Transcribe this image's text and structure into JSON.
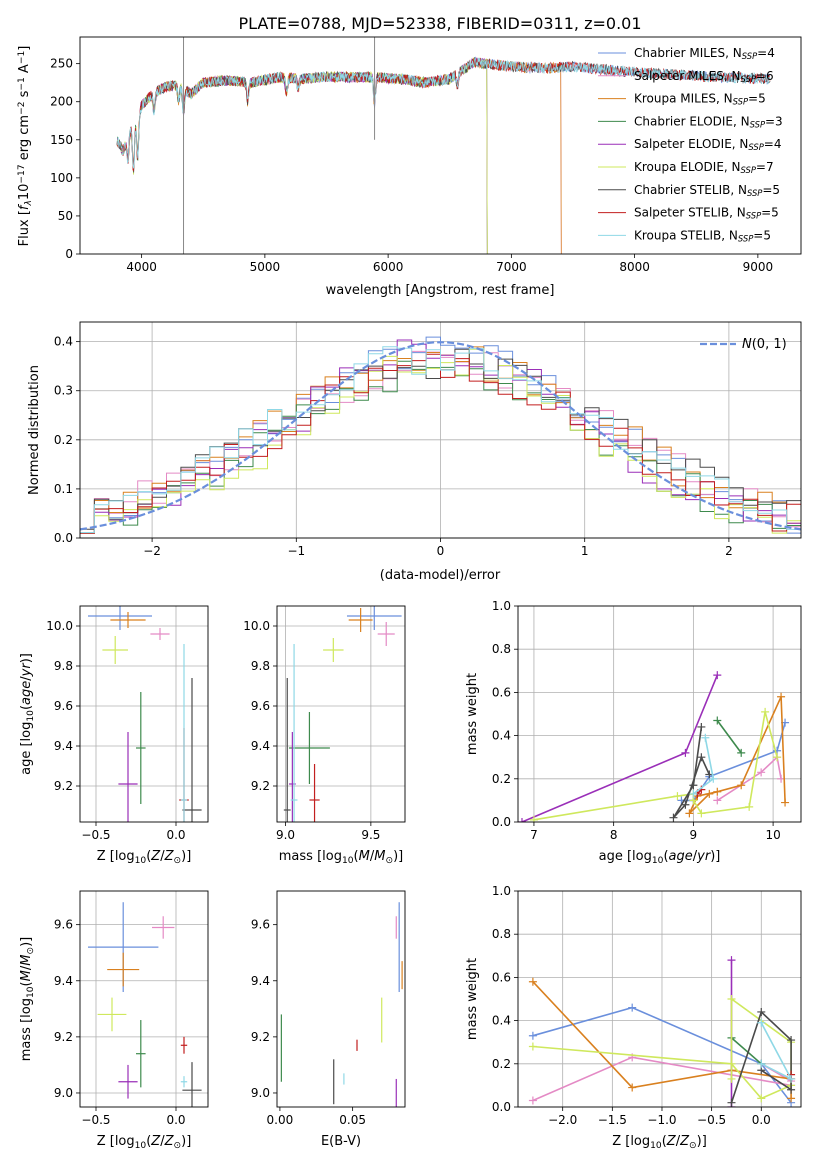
{
  "figure": {
    "title": "PLATE=0788, MJD=52338, FIBERID=0311, z=0.01"
  },
  "series_colors": [
    "#6a8fdc",
    "#e48ac5",
    "#d9801f",
    "#3e8a4d",
    "#9a2fb8",
    "#cfe85d",
    "#4a4a4a",
    "#c21f1f",
    "#8fd8e6"
  ],
  "chart_data": [
    {
      "id": "spectrum",
      "type": "line",
      "xlabel": "wavelength [Angstrom, rest frame]",
      "ylabel": "Flux [f_λ 10^{-17} erg cm^{-2} s^{-1} A^{-1}]",
      "xlim": [
        3500,
        9350
      ],
      "ylim": [
        0,
        285
      ],
      "xticks": [
        4000,
        5000,
        6000,
        7000,
        8000,
        9000
      ],
      "yticks": [
        0,
        50,
        100,
        150,
        200,
        250
      ],
      "grid": false,
      "legend_position": "top-right",
      "spectrum_knots": {
        "x": [
          3800,
          3850,
          3900,
          3950,
          4000,
          4100,
          4200,
          4300,
          4400,
          4500,
          4700,
          4900,
          5100,
          5300,
          5500,
          5700,
          5900,
          6100,
          6300,
          6500,
          6700,
          6900,
          7100,
          7300,
          7500,
          7700,
          7900,
          8100,
          8300,
          8500,
          8700,
          8900,
          9100
        ],
        "y": [
          150,
          135,
          160,
          175,
          195,
          212,
          220,
          222,
          210,
          225,
          228,
          225,
          232,
          230,
          233,
          232,
          232,
          230,
          225,
          230,
          252,
          248,
          245,
          244,
          246,
          243,
          240,
          238,
          236,
          234,
          232,
          231,
          230
        ]
      },
      "series": [
        {
          "name": "Chabrier MILES, N_SSP=4",
          "xmax": 9100
        },
        {
          "name": "Salpeter MILES, N_SSP=6",
          "xmax": 7400
        },
        {
          "name": "Kroupa MILES, N_SSP=5",
          "xmax": 7400
        },
        {
          "name": "Chabrier ELODIE, N_SSP=3",
          "xmax": 6800
        },
        {
          "name": "Salpeter ELODIE, N_SSP=4",
          "xmax": 6800
        },
        {
          "name": "Kroupa ELODIE, N_SSP=7",
          "xmax": 6800
        },
        {
          "name": "Chabrier STELIB, N_SSP=5",
          "xmax": 9100
        },
        {
          "name": "Salpeter STELIB, N_SSP=5",
          "xmax": 9100
        },
        {
          "name": "Kroupa STELIB, N_SSP=5",
          "xmax": 9100
        }
      ]
    },
    {
      "id": "residuals",
      "type": "line",
      "xlabel": "(data-model)/error",
      "ylabel": "Normed distribution",
      "xlim": [
        -2.5,
        2.5
      ],
      "ylim": [
        0,
        0.44
      ],
      "xticks": [
        -2,
        -1,
        0,
        1,
        2
      ],
      "yticks": [
        0.0,
        0.1,
        0.2,
        0.3,
        0.4
      ],
      "grid": true,
      "legend_position": "top-right",
      "reference_curve": {
        "name": "N(0,1)",
        "mean": 0,
        "sigma": 1
      },
      "bins": 50,
      "amplitude_per_series": [
        0.38,
        0.36,
        0.37,
        0.35,
        0.38,
        0.37,
        0.36,
        0.35,
        0.37
      ],
      "width_per_series": [
        1.15,
        1.2,
        1.18,
        1.1,
        1.05,
        1.02,
        1.25,
        1.15,
        1.2
      ]
    },
    {
      "id": "age-vs-metallicity",
      "type": "scatter",
      "xlabel": "Z [log10(Z/Z⊙)]",
      "ylabel": "age [log10(age/yr)]",
      "xlim": [
        -0.6,
        0.2
      ],
      "ylim": [
        9.02,
        10.1
      ],
      "xticks": [
        -0.5,
        0.0
      ],
      "yticks": [
        9.2,
        9.4,
        9.6,
        9.8,
        10.0
      ],
      "grid": true,
      "points": [
        {
          "x": -0.35,
          "y": 10.05,
          "xerr": 0.2,
          "yerr": 0.07
        },
        {
          "x": -0.1,
          "y": 9.96,
          "xerr": 0.06,
          "yerr": 0.03
        },
        {
          "x": -0.3,
          "y": 10.03,
          "xerr": 0.11,
          "yerr": 0.04
        },
        {
          "x": -0.22,
          "y": 9.39,
          "xerr": 0.03,
          "yerr": 0.28
        },
        {
          "x": -0.3,
          "y": 9.21,
          "xerr": 0.06,
          "yerr": 0.26
        },
        {
          "x": -0.38,
          "y": 9.88,
          "xerr": 0.08,
          "yerr": 0.07
        },
        {
          "x": 0.1,
          "y": 9.08,
          "xerr": 0.06,
          "yerr": 0.66
        },
        {
          "x": 0.05,
          "y": 9.13,
          "xerr": 0.03,
          "yerr": 0.36
        },
        {
          "x": 0.05,
          "y": 9.13,
          "xerr": 0.02,
          "yerr": 0.78
        }
      ]
    },
    {
      "id": "age-vs-mass",
      "type": "scatter",
      "xlabel": "mass [log10(M/M⊙)]",
      "ylabel": "",
      "xlim": [
        8.95,
        9.7
      ],
      "ylim": [
        9.02,
        10.1
      ],
      "xticks": [
        9.0,
        9.5
      ],
      "yticks": [
        9.2,
        9.4,
        9.6,
        9.8,
        10.0
      ],
      "grid": true,
      "points": [
        {
          "x": 9.52,
          "y": 10.05,
          "xerr": 0.16,
          "yerr": 0.07
        },
        {
          "x": 9.59,
          "y": 9.96,
          "xerr": 0.05,
          "yerr": 0.06
        },
        {
          "x": 9.44,
          "y": 10.03,
          "xerr": 0.07,
          "yerr": 0.06
        },
        {
          "x": 9.14,
          "y": 9.39,
          "xerr": 0.12,
          "yerr": 0.18
        },
        {
          "x": 9.04,
          "y": 9.21,
          "xerr": 0.02,
          "yerr": 0.26
        },
        {
          "x": 9.28,
          "y": 9.88,
          "xerr": 0.06,
          "yerr": 0.06
        },
        {
          "x": 9.01,
          "y": 9.08,
          "xerr": 0.02,
          "yerr": 0.66
        },
        {
          "x": 9.17,
          "y": 9.13,
          "xerr": 0.03,
          "yerr": 0.18
        },
        {
          "x": 9.05,
          "y": 9.13,
          "xerr": 0.02,
          "yerr": 0.78
        }
      ]
    },
    {
      "id": "weight-vs-age",
      "type": "line",
      "xlabel": "age [log10(age/yr)]",
      "ylabel": "mass weight",
      "xlim": [
        6.8,
        10.35
      ],
      "ylim": [
        0,
        1
      ],
      "xticks": [
        7,
        8,
        9,
        10
      ],
      "yticks": [
        0.0,
        0.2,
        0.4,
        0.6,
        0.8,
        1.0
      ],
      "grid": true,
      "series": [
        {
          "x": [
            10.15,
            10.05,
            9.2,
            9.0,
            8.85
          ],
          "y": [
            0.46,
            0.33,
            0.21,
            0.1,
            0.1
          ]
        },
        {
          "x": [
            9.3,
            9.85,
            10.05,
            10.1
          ],
          "y": [
            0.1,
            0.23,
            0.3,
            0.2
          ]
        },
        {
          "x": [
            10.15,
            10.1,
            9.6,
            9.2,
            8.95,
            9.05,
            9.3
          ],
          "y": [
            0.09,
            0.58,
            0.17,
            0.13,
            0.04,
            0.12,
            0.14
          ]
        },
        {
          "x": [
            9.3,
            9.6
          ],
          "y": [
            0.47,
            0.32
          ]
        },
        {
          "x": [
            9.3,
            8.9,
            6.85
          ],
          "y": [
            0.68,
            0.32,
            0.0
          ]
        },
        {
          "x": [
            7.0,
            8.8,
            9.0,
            9.0,
            9.1,
            9.7,
            9.9,
            10.05
          ],
          "y": [
            0.01,
            0.12,
            0.13,
            0.1,
            0.04,
            0.07,
            0.51,
            0.3
          ]
        },
        {
          "x": [
            9.1,
            9.0,
            8.75,
            8.9,
            9.1,
            9.2
          ],
          "y": [
            0.44,
            0.17,
            0.02,
            0.08,
            0.3,
            0.22
          ]
        },
        {
          "x": [
            9.05,
            9.1
          ],
          "y": [
            0.13,
            0.15
          ]
        },
        {
          "x": [
            9.15,
            9.25,
            9.0
          ],
          "y": [
            0.39,
            0.2,
            0.13
          ]
        }
      ]
    },
    {
      "id": "mass-vs-metallicity",
      "type": "scatter",
      "xlabel": "Z [log10(Z/Z⊙)]",
      "ylabel": "mass [log10(M/M⊙)]",
      "xlim": [
        -0.6,
        0.2
      ],
      "ylim": [
        8.95,
        9.72
      ],
      "xticks": [
        -0.5,
        0.0
      ],
      "yticks": [
        9.0,
        9.2,
        9.4,
        9.6
      ],
      "grid": true,
      "points": [
        {
          "x": -0.33,
          "y": 9.52,
          "xerr": 0.22,
          "yerr": 0.16
        },
        {
          "x": -0.08,
          "y": 9.59,
          "xerr": 0.07,
          "yerr": 0.04
        },
        {
          "x": -0.33,
          "y": 9.44,
          "xerr": 0.1,
          "yerr": 0.06
        },
        {
          "x": -0.22,
          "y": 9.14,
          "xerr": 0.03,
          "yerr": 0.12
        },
        {
          "x": -0.3,
          "y": 9.04,
          "xerr": 0.06,
          "yerr": 0.06
        },
        {
          "x": -0.4,
          "y": 9.28,
          "xerr": 0.09,
          "yerr": 0.06
        },
        {
          "x": 0.1,
          "y": 9.01,
          "xerr": 0.06,
          "yerr": 0.1
        },
        {
          "x": 0.05,
          "y": 9.17,
          "xerr": 0.02,
          "yerr": 0.03
        },
        {
          "x": 0.05,
          "y": 9.04,
          "xerr": 0.02,
          "yerr": 0.02
        }
      ]
    },
    {
      "id": "mass-vs-ebv",
      "type": "scatter",
      "xlabel": "E(B-V)",
      "ylabel": "",
      "xlim": [
        -0.002,
        0.086
      ],
      "ylim": [
        8.95,
        9.72
      ],
      "xticks": [
        0.0,
        0.05
      ],
      "xtick_labels": [
        "0.00",
        "0.05"
      ],
      "yticks": [
        9.0,
        9.2,
        9.4,
        9.6
      ],
      "grid": false,
      "points": [
        {
          "x": 0.082,
          "y": 9.52,
          "xerr": 0,
          "yerr": 0.16
        },
        {
          "x": 0.08,
          "y": 9.59,
          "xerr": 0,
          "yerr": 0.04
        },
        {
          "x": 0.084,
          "y": 9.42,
          "xerr": 0,
          "yerr": 0.05
        },
        {
          "x": 0.001,
          "y": 9.16,
          "xerr": 0,
          "yerr": 0.12
        },
        {
          "x": 0.08,
          "y": 9.0,
          "xerr": 0,
          "yerr": 0.05
        },
        {
          "x": 0.07,
          "y": 9.26,
          "xerr": 0,
          "yerr": 0.08
        },
        {
          "x": 0.037,
          "y": 9.04,
          "xerr": 0,
          "yerr": 0.08
        },
        {
          "x": 0.053,
          "y": 9.17,
          "xerr": 0,
          "yerr": 0.02
        },
        {
          "x": 0.044,
          "y": 9.05,
          "xerr": 0,
          "yerr": 0.02
        }
      ]
    },
    {
      "id": "weight-vs-metallicity",
      "type": "line",
      "xlabel": "Z [log10(Z/Z⊙)]",
      "ylabel": "mass weight",
      "xlim": [
        -2.45,
        0.4
      ],
      "ylim": [
        0,
        1
      ],
      "xticks": [
        -2.0,
        -1.5,
        -1.0,
        -0.5,
        0.0
      ],
      "yticks": [
        0.0,
        0.2,
        0.4,
        0.6,
        0.8,
        1.0
      ],
      "grid": true,
      "series": [
        {
          "x": [
            -2.3,
            -1.3,
            0.0,
            0.3
          ],
          "y": [
            0.33,
            0.46,
            0.2,
            0.02
          ]
        },
        {
          "x": [
            -2.3,
            -1.3,
            0.3,
            0.3,
            0.0
          ],
          "y": [
            0.03,
            0.23,
            0.1,
            0.12,
            0.2
          ]
        },
        {
          "x": [
            -2.3,
            -1.3,
            -0.3,
            0.3,
            0.3
          ],
          "y": [
            0.58,
            0.09,
            0.17,
            0.13,
            0.04
          ]
        },
        {
          "x": [
            -0.3,
            0.0
          ],
          "y": [
            0.32,
            0.2
          ]
        },
        {
          "x": [
            -0.3,
            -0.3
          ],
          "y": [
            0.68,
            0.0
          ]
        },
        {
          "x": [
            -2.3,
            -0.3,
            0.0,
            0.3,
            0.3,
            -0.3,
            -0.3
          ],
          "y": [
            0.28,
            0.2,
            0.04,
            0.1,
            0.3,
            0.5,
            0.13
          ]
        },
        {
          "x": [
            -0.3,
            0.0,
            0.3,
            0.3,
            0.0
          ],
          "y": [
            0.02,
            0.44,
            0.31,
            0.08,
            0.17
          ]
        },
        {
          "x": [
            0.3,
            0.3
          ],
          "y": [
            0.13,
            0.15
          ]
        },
        {
          "x": [
            0.0,
            0.3,
            0.0
          ],
          "y": [
            0.39,
            0.13,
            0.2
          ]
        }
      ]
    }
  ]
}
